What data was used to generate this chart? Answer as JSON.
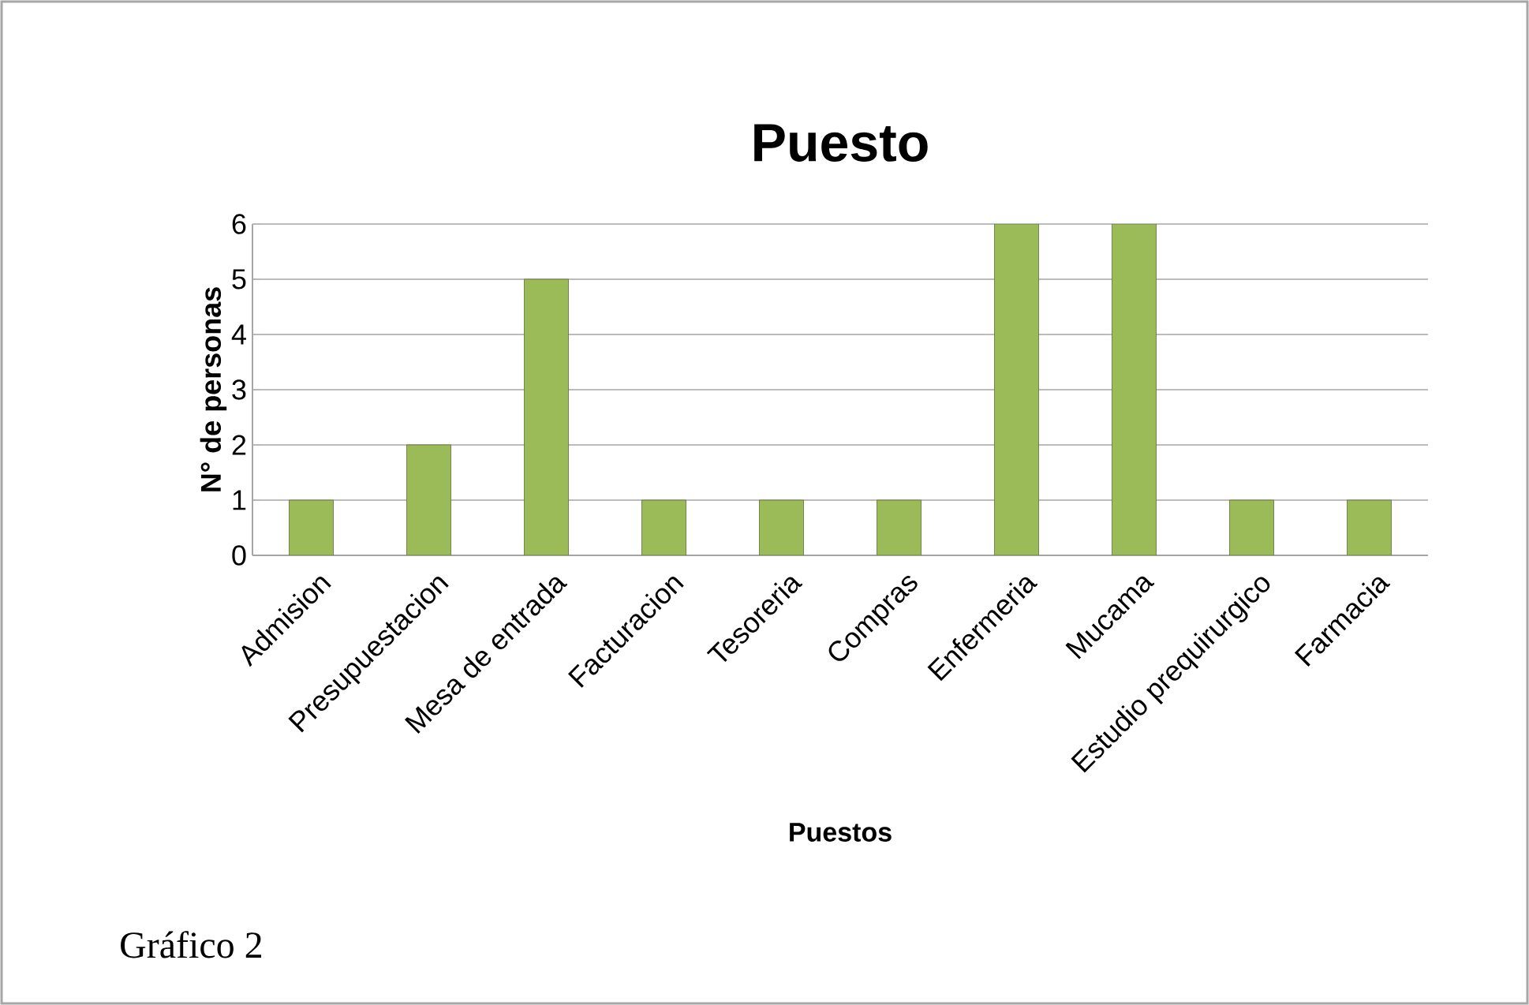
{
  "chart_data": {
    "type": "bar",
    "title": "Puesto",
    "xlabel": "Puestos",
    "ylabel": "N° de personas",
    "categories": [
      "Admision",
      "Presupuestacion",
      "Mesa de entrada",
      "Facturacion",
      "Tesoreria",
      "Compras",
      "Enfermeria",
      "Mucama",
      "Estudio prequirurgico",
      "Farmacia"
    ],
    "values": [
      1,
      2,
      5,
      1,
      1,
      1,
      6,
      6,
      1,
      1
    ],
    "color": "#9bbb59",
    "ylim": [
      0,
      6
    ],
    "yticks": [
      0,
      1,
      2,
      3,
      4,
      5,
      6
    ],
    "grid": "y",
    "annotations": [
      "Gráfico 2"
    ]
  }
}
